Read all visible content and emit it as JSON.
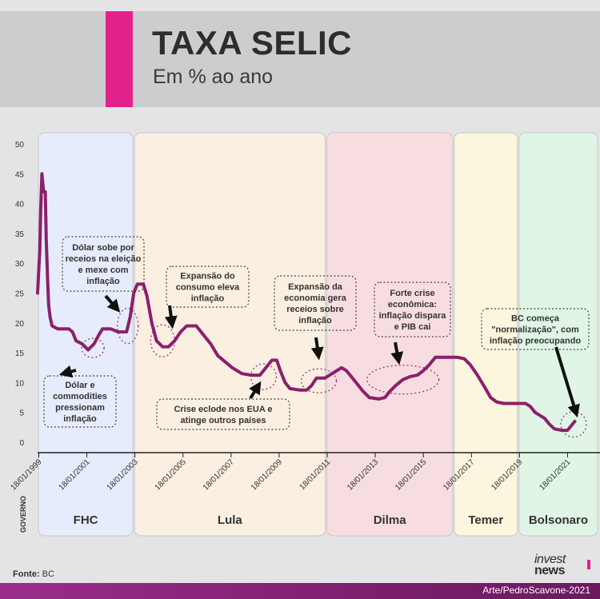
{
  "header": {
    "title": "TAXA SELIC",
    "subtitle": "Em % ao ano"
  },
  "footer": {
    "source_label": "Fonte:",
    "source_value": "BC",
    "credit": "Arte/PedroScavone-2021",
    "logo_line1": "invest",
    "logo_line2": "news"
  },
  "governo_label": "GOVERNO",
  "chart_data": {
    "type": "line",
    "title": "TAXA SELIC",
    "subtitle": "Em % ao ano",
    "ylim": [
      0,
      50
    ],
    "yticks": [
      "50",
      "45",
      "40",
      "35",
      "30",
      "25",
      "20",
      "15",
      "10",
      "5",
      "0"
    ],
    "xlim": [
      1999.0,
      2022.4
    ],
    "xticks": [
      {
        "label": "18/01/1999",
        "x": 1999.05
      },
      {
        "label": "18/01/2001",
        "x": 2001.05
      },
      {
        "label": "18/01/2003",
        "x": 2003.05
      },
      {
        "label": "18/01/2005",
        "x": 2005.05
      },
      {
        "label": "18/01/2007",
        "x": 2007.05
      },
      {
        "label": "18/01/2009",
        "x": 2009.05
      },
      {
        "label": "18/01/2011",
        "x": 2011.05
      },
      {
        "label": "18/01/2013",
        "x": 2013.05
      },
      {
        "label": "18/01/2015",
        "x": 2015.05
      },
      {
        "label": "18/01/2017",
        "x": 2017.05
      },
      {
        "label": "18/01/2019",
        "x": 2019.05
      },
      {
        "label": "18/01/2021",
        "x": 2021.05
      }
    ],
    "governments": [
      {
        "name": "FHC",
        "start": 1999.0,
        "end": 2003.0,
        "color": "#e6ecfb"
      },
      {
        "name": "Lula",
        "start": 2003.0,
        "end": 2011.0,
        "color": "#fbefe2"
      },
      {
        "name": "Dilma",
        "start": 2011.0,
        "end": 2016.3,
        "color": "#f8dde0"
      },
      {
        "name": "Temer",
        "start": 2016.3,
        "end": 2019.0,
        "color": "#fbf6dd"
      },
      {
        "name": "Bolsonaro",
        "start": 2019.0,
        "end": 2022.4,
        "color": "#e0f5e6"
      }
    ],
    "series": [
      {
        "color": "#8c1f6b",
        "points": [
          [
            1999.0,
            25.0
          ],
          [
            1999.05,
            29.0
          ],
          [
            1999.09,
            32.0
          ],
          [
            1999.13,
            39.0
          ],
          [
            1999.18,
            45.0
          ],
          [
            1999.25,
            42.0
          ],
          [
            1999.32,
            42.0
          ],
          [
            1999.36,
            34.0
          ],
          [
            1999.42,
            27.0
          ],
          [
            1999.46,
            23.0
          ],
          [
            1999.52,
            21.0
          ],
          [
            1999.6,
            19.5
          ],
          [
            1999.85,
            19.0
          ],
          [
            2000.3,
            19.0
          ],
          [
            2000.45,
            18.5
          ],
          [
            2000.6,
            17.0
          ],
          [
            2000.85,
            16.5
          ],
          [
            2001.1,
            15.5
          ],
          [
            2001.35,
            16.5
          ],
          [
            2001.55,
            18.0
          ],
          [
            2001.7,
            19.0
          ],
          [
            2002.05,
            19.0
          ],
          [
            2002.35,
            18.5
          ],
          [
            2002.7,
            18.5
          ],
          [
            2002.85,
            21.0
          ],
          [
            2003.0,
            25.0
          ],
          [
            2003.15,
            26.5
          ],
          [
            2003.4,
            26.5
          ],
          [
            2003.55,
            24.5
          ],
          [
            2003.75,
            20.0
          ],
          [
            2003.95,
            17.0
          ],
          [
            2004.2,
            16.0
          ],
          [
            2004.45,
            16.0
          ],
          [
            2004.7,
            17.0
          ],
          [
            2004.95,
            18.5
          ],
          [
            2005.2,
            19.5
          ],
          [
            2005.6,
            19.5
          ],
          [
            2005.9,
            18.0
          ],
          [
            2006.2,
            16.5
          ],
          [
            2006.5,
            14.5
          ],
          [
            2006.8,
            13.5
          ],
          [
            2007.1,
            12.5
          ],
          [
            2007.5,
            11.5
          ],
          [
            2007.9,
            11.25
          ],
          [
            2008.25,
            11.25
          ],
          [
            2008.5,
            12.5
          ],
          [
            2008.75,
            13.75
          ],
          [
            2008.95,
            13.75
          ],
          [
            2009.1,
            12.0
          ],
          [
            2009.3,
            10.0
          ],
          [
            2009.5,
            9.0
          ],
          [
            2009.9,
            8.75
          ],
          [
            2010.2,
            8.75
          ],
          [
            2010.4,
            9.5
          ],
          [
            2010.6,
            10.75
          ],
          [
            2010.95,
            10.75
          ],
          [
            2011.15,
            11.25
          ],
          [
            2011.45,
            12.0
          ],
          [
            2011.65,
            12.5
          ],
          [
            2011.85,
            12.0
          ],
          [
            2012.05,
            11.0
          ],
          [
            2012.3,
            9.75
          ],
          [
            2012.55,
            8.5
          ],
          [
            2012.8,
            7.5
          ],
          [
            2013.2,
            7.25
          ],
          [
            2013.45,
            7.5
          ],
          [
            2013.65,
            8.5
          ],
          [
            2013.9,
            9.5
          ],
          [
            2014.2,
            10.5
          ],
          [
            2014.5,
            11.0
          ],
          [
            2014.8,
            11.25
          ],
          [
            2015.05,
            12.0
          ],
          [
            2015.3,
            13.0
          ],
          [
            2015.55,
            14.25
          ],
          [
            2016.0,
            14.25
          ],
          [
            2016.45,
            14.25
          ],
          [
            2016.75,
            14.0
          ],
          [
            2017.0,
            13.0
          ],
          [
            2017.3,
            11.25
          ],
          [
            2017.6,
            9.25
          ],
          [
            2017.85,
            7.5
          ],
          [
            2018.1,
            6.75
          ],
          [
            2018.4,
            6.5
          ],
          [
            2018.9,
            6.5
          ],
          [
            2019.3,
            6.5
          ],
          [
            2019.5,
            6.0
          ],
          [
            2019.7,
            5.0
          ],
          [
            2019.9,
            4.5
          ],
          [
            2020.1,
            4.0
          ],
          [
            2020.3,
            3.0
          ],
          [
            2020.5,
            2.25
          ],
          [
            2020.8,
            2.0
          ],
          [
            2021.05,
            2.0
          ],
          [
            2021.2,
            2.75
          ],
          [
            2021.35,
            3.5
          ]
        ]
      }
    ],
    "annotations": [
      {
        "id": "ann1",
        "lines": [
          "Dólar sobe por",
          "receios na eleição",
          "e mexe com",
          "inflação"
        ]
      },
      {
        "id": "ann2",
        "lines": [
          "Dólar e",
          "commodities",
          "pressionam",
          "inflação"
        ]
      },
      {
        "id": "ann3",
        "lines": [
          "Expansão do",
          "consumo eleva",
          "inflação"
        ]
      },
      {
        "id": "ann4",
        "lines": [
          "Crise eclode nos EUA e",
          "atinge outros países"
        ]
      },
      {
        "id": "ann5",
        "lines": [
          "Expansão da",
          "economia gera",
          "receios sobre",
          "inflação"
        ]
      },
      {
        "id": "ann6",
        "lines": [
          "Forte crise",
          "econômica:",
          "inflação dispara",
          "e PIB cai"
        ]
      },
      {
        "id": "ann7",
        "lines": [
          "BC começa",
          "\"normalização\", com",
          "inflação preocupando"
        ]
      }
    ]
  }
}
